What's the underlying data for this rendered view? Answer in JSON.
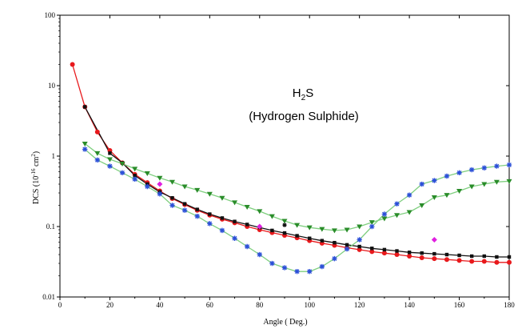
{
  "chart_data": {
    "type": "line",
    "xlabel": "Angle ( Deg.)",
    "ylabel": "DCS (10",
    "ylabel_exp1": "-16",
    "ylabel_mid": " cm",
    "ylabel_exp2": "2",
    "ylabel_end": ")",
    "xlim": [
      0,
      180
    ],
    "ylim": [
      0.01,
      100
    ],
    "y_scale": "log",
    "grid": false,
    "legend": "none",
    "x_ticks": [
      "0",
      "20",
      "40",
      "60",
      "80",
      "100",
      "120",
      "140",
      "160",
      "180"
    ],
    "y_ticks": [
      "0.01",
      "0.1",
      "1",
      "10",
      "100"
    ],
    "annotation": {
      "line1_main": "H",
      "line1_sub": "2",
      "line1_end": "S",
      "line2": "(Hydrogen Sulphide)"
    },
    "series": [
      {
        "color": "#e8191c",
        "line_color": "#e8191c",
        "marker": "circle",
        "connected": true,
        "x": [
          5,
          10,
          15,
          20,
          25,
          30,
          35,
          40,
          45,
          50,
          55,
          60,
          65,
          70,
          75,
          80,
          85,
          90,
          95,
          100,
          105,
          110,
          115,
          120,
          125,
          130,
          135,
          140,
          145,
          150,
          155,
          160,
          165,
          170,
          175,
          180
        ],
        "y": [
          20,
          5.0,
          2.2,
          1.2,
          0.8,
          0.55,
          0.42,
          0.32,
          0.25,
          0.205,
          0.17,
          0.145,
          0.127,
          0.113,
          0.1,
          0.09,
          0.082,
          0.075,
          0.069,
          0.063,
          0.058,
          0.054,
          0.05,
          0.047,
          0.044,
          0.042,
          0.04,
          0.038,
          0.036,
          0.035,
          0.034,
          0.033,
          0.032,
          0.032,
          0.031,
          0.031
        ]
      },
      {
        "color": "#111111",
        "line_color": "#111111",
        "marker": "square",
        "connected": true,
        "x": [
          10,
          20,
          25,
          30,
          35,
          40,
          45,
          50,
          55,
          60,
          65,
          70,
          75,
          80,
          85,
          90,
          95,
          100,
          105,
          110,
          115,
          120,
          125,
          130,
          135,
          140,
          145,
          150,
          155,
          160,
          165,
          170,
          175,
          180
        ],
        "y": [
          5.0,
          1.1,
          0.8,
          0.53,
          0.4,
          0.31,
          0.255,
          0.21,
          0.175,
          0.15,
          0.132,
          0.118,
          0.107,
          0.097,
          0.088,
          0.081,
          0.074,
          0.068,
          0.063,
          0.059,
          0.055,
          0.052,
          0.049,
          0.047,
          0.045,
          0.043,
          0.042,
          0.041,
          0.04,
          0.039,
          0.038,
          0.038,
          0.037,
          0.037
        ]
      },
      {
        "color": "#2a8c2a",
        "line_color": "#7fcf7f",
        "marker": "triangle-down",
        "connected": true,
        "x": [
          10,
          15,
          20,
          25,
          30,
          35,
          40,
          45,
          50,
          55,
          60,
          65,
          70,
          75,
          80,
          85,
          90,
          95,
          100,
          105,
          110,
          115,
          120,
          125,
          130,
          135,
          140,
          145,
          150,
          155,
          160,
          165,
          170,
          175,
          180
        ],
        "y": [
          1.5,
          1.1,
          0.9,
          0.78,
          0.66,
          0.57,
          0.49,
          0.43,
          0.37,
          0.33,
          0.29,
          0.255,
          0.22,
          0.19,
          0.165,
          0.14,
          0.12,
          0.105,
          0.097,
          0.092,
          0.088,
          0.09,
          0.1,
          0.115,
          0.13,
          0.145,
          0.16,
          0.2,
          0.26,
          0.28,
          0.32,
          0.37,
          0.4,
          0.43,
          0.44
        ]
      },
      {
        "color": "#2b4fd8",
        "line_color": "#7fcf7f",
        "marker": "star",
        "connected": true,
        "x": [
          10,
          15,
          20,
          25,
          30,
          35,
          40,
          45,
          50,
          55,
          60,
          65,
          70,
          75,
          80,
          85,
          90,
          95,
          100,
          105,
          110,
          115,
          120,
          125,
          130,
          135,
          140,
          145,
          150,
          155,
          160,
          165,
          170,
          175,
          180
        ],
        "y": [
          1.25,
          0.88,
          0.72,
          0.58,
          0.47,
          0.37,
          0.29,
          0.2,
          0.17,
          0.14,
          0.11,
          0.088,
          0.068,
          0.052,
          0.04,
          0.03,
          0.026,
          0.023,
          0.023,
          0.027,
          0.035,
          0.048,
          0.065,
          0.1,
          0.15,
          0.21,
          0.28,
          0.4,
          0.45,
          0.52,
          0.58,
          0.64,
          0.68,
          0.72,
          0.75
        ]
      },
      {
        "color": "#e020e0",
        "line_color": "#e020e0",
        "marker": "diamond",
        "connected": false,
        "x": [
          40,
          80,
          150
        ],
        "y": [
          0.4,
          0.1,
          0.065
        ]
      },
      {
        "color": "#111111",
        "line_color": "#111111",
        "marker": "small-star",
        "connected": false,
        "x": [
          90
        ],
        "y": [
          0.105
        ]
      }
    ]
  }
}
